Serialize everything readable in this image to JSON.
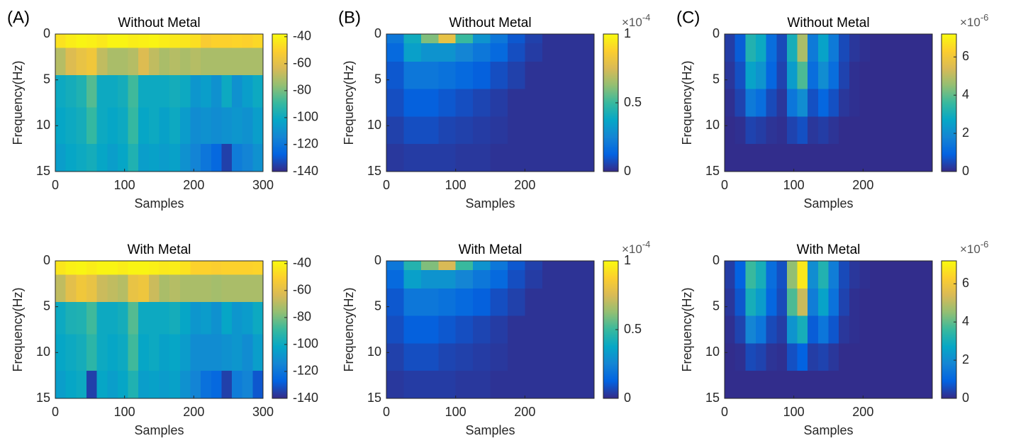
{
  "chart_data": [
    {
      "type": "heatmap",
      "panel_label": "(A)",
      "title": "Without Metal",
      "xlabel": "Samples",
      "ylabel": "Frequency(Hz)",
      "colormap": "parula",
      "y_reversed": true,
      "xlim": [
        0,
        300
      ],
      "ylim": [
        0,
        15
      ],
      "xticks": [
        0,
        100,
        200,
        300
      ],
      "yticks": [
        0,
        5,
        10,
        15
      ],
      "x_edges": [
        0,
        15,
        30,
        45,
        60,
        75,
        90,
        105,
        120,
        135,
        150,
        165,
        180,
        195,
        210,
        225,
        240,
        255,
        270,
        285,
        300
      ],
      "y_edges": [
        0,
        1.5,
        4.5,
        8,
        12,
        15
      ],
      "z": [
        [
          -45,
          -42,
          -40,
          -41,
          -43,
          -40,
          -40,
          -42,
          -41,
          -40,
          -42,
          -43,
          -44,
          -46,
          -52,
          -50,
          -50,
          -49,
          -50,
          -48
        ],
        [
          -70,
          -62,
          -58,
          -55,
          -68,
          -72,
          -72,
          -70,
          -62,
          -68,
          -72,
          -70,
          -72,
          -70,
          -72,
          -72,
          -72,
          -72,
          -72,
          -72
        ],
        [
          -100,
          -98,
          -95,
          -85,
          -100,
          -100,
          -98,
          -88,
          -100,
          -100,
          -100,
          -98,
          -100,
          -108,
          -105,
          -110,
          -100,
          -110,
          -105,
          -100
        ],
        [
          -102,
          -100,
          -98,
          -90,
          -100,
          -102,
          -100,
          -90,
          -102,
          -100,
          -104,
          -100,
          -106,
          -112,
          -110,
          -112,
          -110,
          -108,
          -110,
          -105
        ],
        [
          -105,
          -102,
          -100,
          -98,
          -102,
          -105,
          -102,
          -95,
          -105,
          -104,
          -106,
          -104,
          -110,
          -115,
          -120,
          -125,
          -135,
          -118,
          -115,
          -110
        ]
      ],
      "clim": [
        -140,
        -38
      ],
      "cticks": [
        -140,
        -120,
        -100,
        -80,
        -60,
        -40
      ]
    },
    {
      "type": "heatmap",
      "panel_label": "(B)",
      "title": "Without Metal",
      "xlabel": "Samples",
      "ylabel": "Frequency(Hz)",
      "colormap": "parula",
      "y_reversed": true,
      "xlim": [
        0,
        300
      ],
      "ylim": [
        0,
        15
      ],
      "xticks": [
        0,
        100,
        200
      ],
      "yticks": [
        0,
        5,
        10,
        15
      ],
      "x_edges": [
        0,
        25,
        50,
        75,
        100,
        125,
        150,
        175,
        200,
        225,
        250,
        275,
        300
      ],
      "y_edges": [
        0,
        1,
        3,
        6,
        9,
        12,
        15
      ],
      "z": [
        [
          0.2,
          0.4,
          0.6,
          0.8,
          0.5,
          0.3,
          0.2,
          0.1,
          0.05,
          0.02,
          0.02,
          0.02
        ],
        [
          0.15,
          0.35,
          0.3,
          0.3,
          0.25,
          0.2,
          0.15,
          0.08,
          0.04,
          0.02,
          0.02,
          0.02
        ],
        [
          0.1,
          0.2,
          0.2,
          0.18,
          0.15,
          0.12,
          0.08,
          0.05,
          0.02,
          0.02,
          0.02,
          0.02
        ],
        [
          0.08,
          0.12,
          0.12,
          0.1,
          0.08,
          0.06,
          0.04,
          0.02,
          0.02,
          0.02,
          0.02,
          0.02
        ],
        [
          0.05,
          0.08,
          0.08,
          0.06,
          0.05,
          0.04,
          0.03,
          0.02,
          0.02,
          0.02,
          0.02,
          0.02
        ],
        [
          0.03,
          0.04,
          0.04,
          0.04,
          0.03,
          0.03,
          0.02,
          0.02,
          0.02,
          0.02,
          0.02,
          0.02
        ]
      ],
      "clim": [
        0,
        1
      ],
      "cticks": [
        0,
        0.5,
        1
      ],
      "colorbar_prefix": "×10",
      "colorbar_exponent": "-4"
    },
    {
      "type": "heatmap",
      "panel_label": "(C)",
      "title": "Without Metal",
      "xlabel": "Samples",
      "ylabel": "Frequency(Hz)",
      "colormap": "parula",
      "y_reversed": true,
      "xlim": [
        0,
        300
      ],
      "ylim": [
        0,
        15
      ],
      "xticks": [
        0,
        100,
        200
      ],
      "yticks": [
        0,
        5,
        10,
        15
      ],
      "x_edges": [
        0,
        15,
        30,
        45,
        60,
        75,
        90,
        105,
        120,
        135,
        150,
        165,
        180,
        195,
        210,
        225,
        240,
        255,
        270,
        285,
        300
      ],
      "y_edges": [
        0,
        3,
        6,
        9,
        12,
        15
      ],
      "z": [
        [
          0.3,
          0.8,
          3.2,
          2.8,
          1.2,
          0.5,
          3.0,
          4.8,
          1.5,
          2.6,
          1.5,
          0.5,
          0.2,
          0.1,
          0.05,
          0.05,
          0.05,
          0.05,
          0.05,
          0.05
        ],
        [
          0.2,
          0.6,
          2.6,
          2.2,
          1.0,
          0.4,
          2.4,
          3.8,
          1.2,
          2.0,
          1.2,
          0.4,
          0.1,
          0.05,
          0.05,
          0.05,
          0.05,
          0.05,
          0.05,
          0.05
        ],
        [
          0.1,
          0.4,
          1.5,
          1.2,
          0.5,
          0.2,
          1.4,
          2.0,
          0.6,
          1.0,
          0.6,
          0.2,
          0.1,
          0.05,
          0.05,
          0.05,
          0.05,
          0.05,
          0.05,
          0.05
        ],
        [
          0.05,
          0.1,
          0.4,
          0.3,
          0.15,
          0.1,
          0.4,
          0.6,
          0.2,
          0.3,
          0.15,
          0.05,
          0.05,
          0.05,
          0.05,
          0.05,
          0.05,
          0.05,
          0.05,
          0.05
        ],
        [
          0.05,
          0.05,
          0.05,
          0.05,
          0.05,
          0.05,
          0.05,
          0.05,
          0.05,
          0.05,
          0.05,
          0.05,
          0.05,
          0.05,
          0.05,
          0.05,
          0.05,
          0.05,
          0.05,
          0.05
        ]
      ],
      "clim": [
        0,
        7.2
      ],
      "cticks": [
        0,
        2,
        4,
        6
      ],
      "colorbar_prefix": "×10",
      "colorbar_exponent": "-6"
    },
    {
      "type": "heatmap",
      "title": "With Metal",
      "xlabel": "Samples",
      "ylabel": "Frequency(Hz)",
      "colormap": "parula",
      "y_reversed": true,
      "xlim": [
        0,
        300
      ],
      "ylim": [
        0,
        15
      ],
      "xticks": [
        0,
        100,
        200,
        300
      ],
      "yticks": [
        0,
        5,
        10,
        15
      ],
      "x_edges": [
        0,
        15,
        30,
        45,
        60,
        75,
        90,
        105,
        120,
        135,
        150,
        165,
        180,
        195,
        210,
        225,
        240,
        255,
        270,
        285,
        300
      ],
      "y_edges": [
        0,
        1.5,
        4.5,
        8,
        12,
        15
      ],
      "z": [
        [
          -44,
          -41,
          -40,
          -42,
          -40,
          -40,
          -42,
          -40,
          -40,
          -41,
          -43,
          -42,
          -45,
          -50,
          -50,
          -51,
          -50,
          -50,
          -50,
          -49
        ],
        [
          -68,
          -60,
          -55,
          -58,
          -66,
          -68,
          -70,
          -58,
          -56,
          -66,
          -72,
          -70,
          -72,
          -72,
          -72,
          -73,
          -72,
          -72,
          -72,
          -72
        ],
        [
          -100,
          -96,
          -95,
          -88,
          -100,
          -100,
          -98,
          -85,
          -100,
          -100,
          -100,
          -98,
          -102,
          -108,
          -106,
          -110,
          -102,
          -108,
          -106,
          -100
        ],
        [
          -102,
          -100,
          -98,
          -92,
          -100,
          -102,
          -100,
          -88,
          -102,
          -100,
          -104,
          -102,
          -106,
          -112,
          -112,
          -112,
          -110,
          -108,
          -112,
          -105
        ],
        [
          -105,
          -102,
          -100,
          -135,
          -102,
          -105,
          -102,
          -95,
          -105,
          -104,
          -106,
          -104,
          -110,
          -115,
          -122,
          -125,
          -135,
          -118,
          -115,
          -130
        ]
      ],
      "clim": [
        -140,
        -38
      ],
      "cticks": [
        -140,
        -120,
        -100,
        -80,
        -60,
        -40
      ]
    },
    {
      "type": "heatmap",
      "title": "With Metal",
      "xlabel": "Samples",
      "ylabel": "Frequency(Hz)",
      "colormap": "parula",
      "y_reversed": true,
      "xlim": [
        0,
        300
      ],
      "ylim": [
        0,
        15
      ],
      "xticks": [
        0,
        100,
        200
      ],
      "yticks": [
        0,
        5,
        10,
        15
      ],
      "x_edges": [
        0,
        25,
        50,
        75,
        100,
        125,
        150,
        175,
        200,
        225,
        250,
        275,
        300
      ],
      "y_edges": [
        0,
        1,
        3,
        6,
        9,
        12,
        15
      ],
      "z": [
        [
          0.2,
          0.45,
          0.6,
          0.75,
          0.5,
          0.3,
          0.2,
          0.1,
          0.05,
          0.02,
          0.02,
          0.02
        ],
        [
          0.15,
          0.35,
          0.3,
          0.3,
          0.25,
          0.2,
          0.15,
          0.08,
          0.04,
          0.02,
          0.02,
          0.02
        ],
        [
          0.1,
          0.2,
          0.2,
          0.18,
          0.15,
          0.12,
          0.08,
          0.05,
          0.02,
          0.02,
          0.02,
          0.02
        ],
        [
          0.08,
          0.12,
          0.12,
          0.1,
          0.08,
          0.06,
          0.04,
          0.02,
          0.02,
          0.02,
          0.02,
          0.02
        ],
        [
          0.05,
          0.08,
          0.08,
          0.06,
          0.05,
          0.04,
          0.03,
          0.02,
          0.02,
          0.02,
          0.02,
          0.02
        ],
        [
          0.03,
          0.04,
          0.04,
          0.04,
          0.03,
          0.03,
          0.02,
          0.02,
          0.02,
          0.02,
          0.02,
          0.02
        ]
      ],
      "clim": [
        0,
        1
      ],
      "cticks": [
        0,
        0.5,
        1
      ],
      "colorbar_prefix": "×10",
      "colorbar_exponent": "-4"
    },
    {
      "type": "heatmap",
      "title": "With Metal",
      "xlabel": "Samples",
      "ylabel": "Frequency(Hz)",
      "colormap": "parula",
      "y_reversed": true,
      "xlim": [
        0,
        300
      ],
      "ylim": [
        0,
        15
      ],
      "xticks": [
        0,
        100,
        200
      ],
      "yticks": [
        0,
        5,
        10,
        15
      ],
      "x_edges": [
        0,
        15,
        30,
        45,
        60,
        75,
        90,
        105,
        120,
        135,
        150,
        165,
        180,
        195,
        210,
        225,
        240,
        255,
        270,
        285,
        300
      ],
      "y_edges": [
        0,
        3,
        6,
        9,
        12,
        15
      ],
      "z": [
        [
          0.3,
          0.9,
          3.6,
          3.0,
          1.2,
          0.6,
          4.5,
          6.8,
          2.0,
          3.2,
          1.6,
          0.5,
          0.2,
          0.1,
          0.05,
          0.05,
          0.05,
          0.05,
          0.05,
          0.05
        ],
        [
          0.2,
          0.7,
          3.0,
          2.4,
          1.0,
          0.5,
          3.8,
          5.2,
          1.6,
          2.6,
          1.3,
          0.4,
          0.1,
          0.05,
          0.05,
          0.05,
          0.05,
          0.05,
          0.05,
          0.05
        ],
        [
          0.1,
          0.4,
          1.8,
          1.4,
          0.5,
          0.3,
          2.2,
          3.0,
          0.8,
          1.4,
          0.7,
          0.2,
          0.1,
          0.05,
          0.05,
          0.05,
          0.05,
          0.05,
          0.05,
          0.05
        ],
        [
          0.05,
          0.1,
          0.5,
          0.4,
          0.15,
          0.1,
          0.6,
          0.9,
          0.3,
          0.4,
          0.2,
          0.05,
          0.05,
          0.05,
          0.05,
          0.05,
          0.05,
          0.05,
          0.05,
          0.05
        ],
        [
          0.05,
          0.05,
          0.05,
          0.05,
          0.05,
          0.05,
          0.05,
          0.05,
          0.05,
          0.05,
          0.05,
          0.05,
          0.05,
          0.05,
          0.05,
          0.05,
          0.05,
          0.05,
          0.05,
          0.05
        ]
      ],
      "clim": [
        0,
        7.2
      ],
      "cticks": [
        0,
        2,
        4,
        6
      ],
      "colorbar_prefix": "×10",
      "colorbar_exponent": "-6"
    }
  ]
}
